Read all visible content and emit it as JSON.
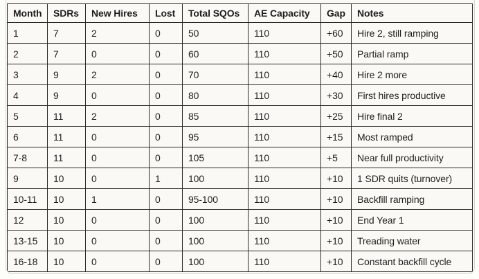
{
  "table": {
    "headers": [
      "Month",
      "SDRs",
      "New Hires",
      "Lost",
      "Total SQOs",
      "AE Capacity",
      "Gap",
      "Notes"
    ],
    "rows": [
      [
        "1",
        "7",
        "2",
        "0",
        "50",
        "110",
        "+60",
        "Hire 2, still ramping"
      ],
      [
        "2",
        "7",
        "0",
        "0",
        "60",
        "110",
        "+50",
        "Partial ramp"
      ],
      [
        "3",
        "9",
        "2",
        "0",
        "70",
        "110",
        "+40",
        "Hire 2 more"
      ],
      [
        "4",
        "9",
        "0",
        "0",
        "80",
        "110",
        "+30",
        "First hires productive"
      ],
      [
        "5",
        "11",
        "2",
        "0",
        "85",
        "110",
        "+25",
        "Hire final 2"
      ],
      [
        "6",
        "11",
        "0",
        "0",
        "95",
        "110",
        "+15",
        "Most ramped"
      ],
      [
        "7-8",
        "11",
        "0",
        "0",
        "105",
        "110",
        "+5",
        "Near full productivity"
      ],
      [
        "9",
        "10",
        "0",
        "1",
        "100",
        "110",
        "+10",
        "1 SDR quits (turnover)"
      ],
      [
        "10-11",
        "10",
        "1",
        "0",
        "95-100",
        "110",
        "+10",
        "Backfill ramping"
      ],
      [
        "12",
        "10",
        "0",
        "0",
        "100",
        "110",
        "+10",
        "End Year 1"
      ],
      [
        "13-15",
        "10",
        "0",
        "0",
        "100",
        "110",
        "+10",
        "Treading water"
      ],
      [
        "16-18",
        "10",
        "0",
        "0",
        "100",
        "110",
        "+10",
        "Constant backfill cycle"
      ]
    ]
  },
  "colors": {
    "cell_background": "#faf9f5",
    "table_border": "#2b2a27",
    "container_border": "#d9d6ce",
    "text": "#1f1e1c"
  }
}
